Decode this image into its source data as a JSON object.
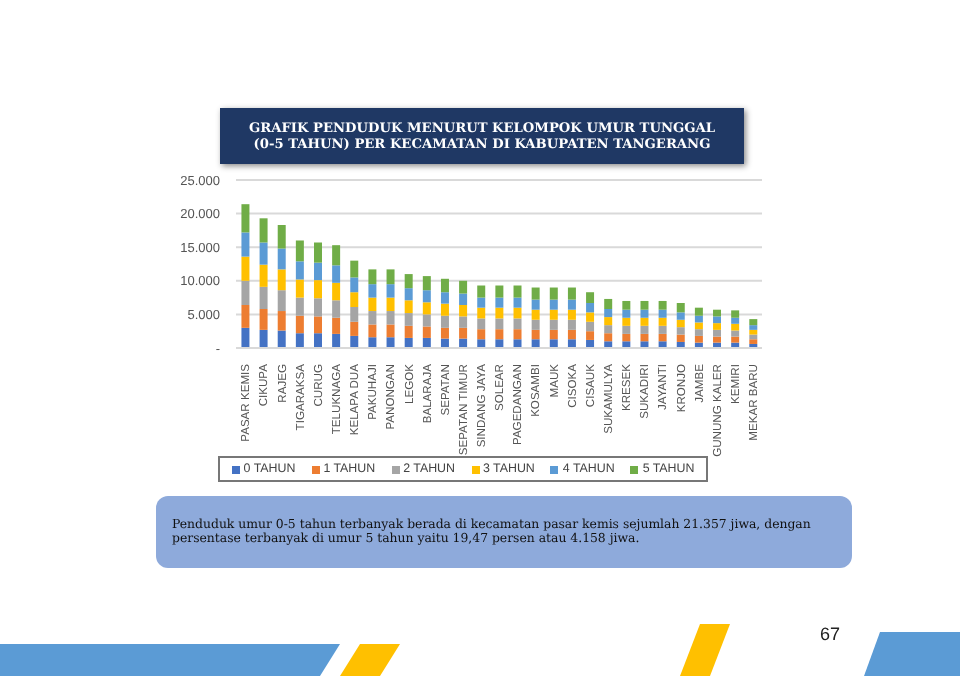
{
  "chart_data": {
    "type": "bar",
    "title": "GRAFIK PENDUDUK MENURUT KELOMPOK UMUR TUNGGAL\n(0-5 TAHUN) PER KECAMATAN DI KABUPATEN TANGERANG",
    "categories": [
      "PASAR KEMIS",
      "CIKUPA",
      "RAJEG",
      "TIGARAKSA",
      "CURUG",
      "TELUKNAGA",
      "KELAPA DUA",
      "PAKUHAJI",
      "PANONGAN",
      "LEGOK",
      "BALARAJA",
      "SEPATAN",
      "SEPATAN TIMUR",
      "SINDANG JAYA",
      "SOLEAR",
      "PAGEDANGAN",
      "KOSAMBI",
      "MAUK",
      "CISOKA",
      "CISAUK",
      "SUKAMULYA",
      "KRESEK",
      "SUKADIRI",
      "JAYANTI",
      "KRONJO",
      "JAMBE",
      "GUNUNG KALER",
      "KEMIRI",
      "MEKAR BARU"
    ],
    "series": [
      {
        "name": "0 TAHUN",
        "color": "#4472c4",
        "values": [
          3000,
          2700,
          2600,
          2200,
          2200,
          2100,
          1800,
          1600,
          1600,
          1500,
          1500,
          1400,
          1400,
          1300,
          1300,
          1300,
          1300,
          1300,
          1300,
          1200,
          1000,
          1000,
          1000,
          1000,
          900,
          800,
          800,
          800,
          600
        ]
      },
      {
        "name": "1 TAHUN",
        "color": "#ed7d31",
        "values": [
          3400,
          3100,
          2900,
          2600,
          2500,
          2400,
          2100,
          1900,
          1900,
          1800,
          1700,
          1600,
          1600,
          1500,
          1500,
          1500,
          1400,
          1400,
          1400,
          1300,
          1200,
          1100,
          1100,
          1100,
          1100,
          1000,
          900,
          900,
          700
        ]
      },
      {
        "name": "2 TAHUN",
        "color": "#a5a5a5",
        "values": [
          3600,
          3300,
          3100,
          2700,
          2700,
          2600,
          2200,
          2000,
          2000,
          1900,
          1800,
          1800,
          1700,
          1600,
          1600,
          1600,
          1500,
          1500,
          1500,
          1400,
          1200,
          1200,
          1200,
          1200,
          1100,
          1000,
          1000,
          900,
          700
        ]
      },
      {
        "name": "3 TAHUN",
        "color": "#ffc000",
        "values": [
          3600,
          3300,
          3100,
          2700,
          2700,
          2600,
          2200,
          2000,
          2000,
          1900,
          1800,
          1800,
          1700,
          1600,
          1600,
          1600,
          1500,
          1500,
          1500,
          1400,
          1200,
          1200,
          1200,
          1200,
          1100,
          1000,
          1000,
          1000,
          700
        ]
      },
      {
        "name": "4 TAHUN",
        "color": "#5b9bd5",
        "values": [
          3600,
          3300,
          3100,
          2700,
          2600,
          2600,
          2200,
          2000,
          2000,
          1800,
          1800,
          1700,
          1700,
          1500,
          1500,
          1500,
          1500,
          1500,
          1500,
          1400,
          1200,
          1200,
          1200,
          1200,
          1100,
          1000,
          1000,
          900,
          700
        ]
      },
      {
        "name": "5 TAHUN",
        "color": "#70ad47",
        "values": [
          4200,
          3600,
          3500,
          3100,
          3000,
          3000,
          2500,
          2200,
          2200,
          2100,
          2100,
          2000,
          1900,
          1800,
          1800,
          1800,
          1800,
          1800,
          1800,
          1600,
          1500,
          1300,
          1300,
          1300,
          1400,
          1200,
          1000,
          1100,
          900
        ]
      }
    ],
    "stacked": true,
    "ylim": [
      0,
      25000
    ],
    "yticks": [
      {
        "value": 0,
        "label": "-"
      },
      {
        "value": 5000,
        "label": "5.000"
      },
      {
        "value": 10000,
        "label": "10.000"
      },
      {
        "value": 15000,
        "label": "15.000"
      },
      {
        "value": 20000,
        "label": "20.000"
      },
      {
        "value": 25000,
        "label": "25.000"
      }
    ],
    "grid": "y",
    "legend": "bottom",
    "annotations": [
      "Penduduk umur 0-5 tahun terbanyak berada di kecamatan pasar kemis sejumlah 21.357 jiwa, dengan persentase terbanyak di umur 5 tahun yaitu 19,47 persen atau 4.158 jiwa.",
      "67"
    ]
  }
}
